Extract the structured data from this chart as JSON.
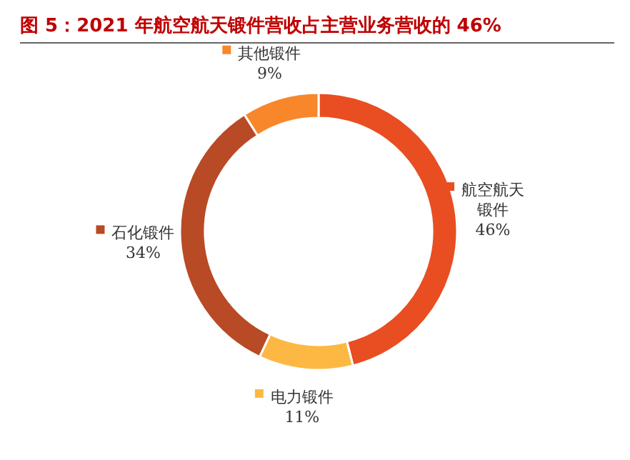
{
  "chart_data": {
    "type": "donut",
    "title": "图 5：2021 年航空航天锻件营收占主营业务营收的 46%",
    "categories": [
      "航空航天锻件",
      "电力锻件",
      "石化锻件",
      "其他锻件"
    ],
    "values": [
      46,
      11,
      34,
      9
    ],
    "colors": [
      "#e84e22",
      "#fdb844",
      "#b84a25",
      "#f7872a"
    ],
    "value_labels": [
      "46%",
      "11%",
      "34%",
      "9%"
    ],
    "legend": "right"
  }
}
